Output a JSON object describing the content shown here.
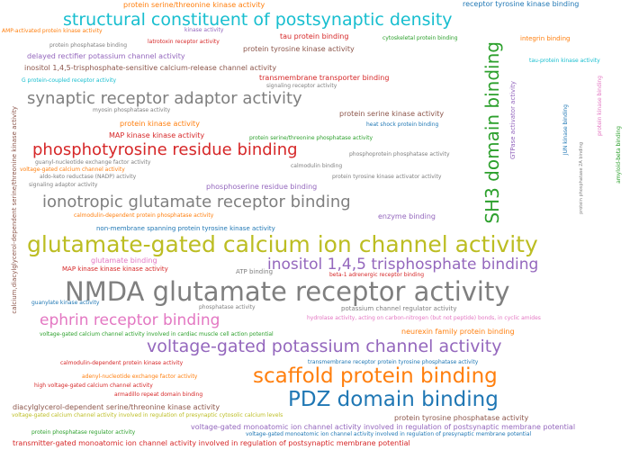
{
  "palette": {
    "gray": "#7f7f7f",
    "purple": "#9467bd",
    "cyan": "#17becf",
    "orange": "#ff7f0e",
    "olive": "#bcbd22",
    "green": "#2ca02c",
    "red": "#d62728",
    "blue": "#1f77b4",
    "pink": "#e377c2",
    "brown": "#8c564b"
  },
  "words": {
    "w01": "NMDA glutamate receptor activity",
    "w02": "glutamate-gated calcium ion channel activity",
    "w03": "structural constituent of postsynaptic density",
    "w04": "scaffold protein binding",
    "w05": "PDZ domain binding",
    "w06": "voltage-gated potassium channel activity",
    "w07": "inositol 1,4,5 trisphosphate binding",
    "w08": "ionotropic glutamate receptor binding",
    "w09": "synaptic receptor adaptor activity",
    "w10": "phosphotyrosine residue binding",
    "w11": "ephrin receptor binding",
    "w12": "SH3 domain binding",
    "w13": "protein serine/threonine kinase activity",
    "w14": "receptor tyrosine kinase binding",
    "w15": "AMP-activated protein kinase activity",
    "w16": "kinase activity",
    "w17": "tau protein binding",
    "w18": "cytoskeletal protein binding",
    "w19": "integrin binding",
    "w20": "protein phosphatase binding",
    "w21": "latrotoxin receptor activity",
    "w22": "protein tyrosine kinase activity",
    "w23": "delayed rectifier potassium channel activity",
    "w24": "tau-protein kinase activity",
    "w25": "inositol 1,4,5-trisphosphate-sensitive calcium-release channel activity",
    "w26": "transmembrane transporter binding",
    "w27": "G protein-coupled receptor activity",
    "w28": "signaling receptor activity",
    "w29": "myosin phosphatase activity",
    "w30": "protein serine kinase activity",
    "w31": "heat shock protein binding",
    "w32": "protein kinase activity",
    "w33": "MAP kinase kinase activity",
    "w34": "protein serine/threonine phosphatase activity",
    "w35": "guanyl-nucleotide exchange factor activity",
    "w36": "calmodulin binding",
    "w37": "voltage-gated calcium channel activity",
    "w38": "phosphoprotein phosphatase activity",
    "w39": "aldo-keto reductase (NADP) activity",
    "w40": "protein tyrosine kinase activator activity",
    "w41": "signaling adaptor activity",
    "w42": "phosphoserine residue binding",
    "w43": "calmodulin-dependent protein phosphatase activity",
    "w44": "enzyme binding",
    "w45": "non-membrane spanning protein tyrosine kinase activity",
    "w46": "glutamate binding",
    "w47": "MAP kinase kinase kinase activity",
    "w48": "ATP binding",
    "w49": "beta-1 adrenergic receptor binding",
    "w50": "guanylate kinase activity",
    "w51": "phosphatase activity",
    "w52": "potassium channel regulator activity",
    "w53": "hydrolase activity, acting on carbon-nitrogen (but not peptide) bonds, in cyclic amides",
    "w54": "voltage-gated calcium channel activity involved in cardiac muscle cell action potential",
    "w55": "neurexin family protein binding",
    "w56": "calmodulin-dependent protein kinase activity",
    "w57": "transmembrane receptor protein tyrosine phosphatase activity",
    "w58": "adenyl-nucleotide exchange factor activity",
    "w59": "high voltage-gated calcium channel activity",
    "w60": "armadillo repeat domain binding",
    "w61": "diacylglycerol-dependent serine/threonine kinase activity",
    "w62": "voltage-gated calcium channel activity involved in regulation of presynaptic cytosolic calcium levels",
    "w63": "protein tyrosine phosphatase activity",
    "w64": "voltage-gated monoatomic ion channel activity involved in regulation of postsynaptic membrane potential",
    "w65": "protein phosphatase regulator activity",
    "w66": "voltage-gated monoatomic ion channel activity involved in regulation of presynaptic membrane potential",
    "w67": "transmitter-gated monoatomic ion channel activity involved in regulation of postsynaptic membrane potential",
    "w68": "calcium,diacylglycerol-dependent serine/threonine kinase activity",
    "w69": "GTPase activator activity",
    "w70": "JUN kinase binding",
    "w71": "protein phosphatase 2A binding",
    "w72": "protein kinase binding",
    "w73": "amyloid-beta binding"
  }
}
